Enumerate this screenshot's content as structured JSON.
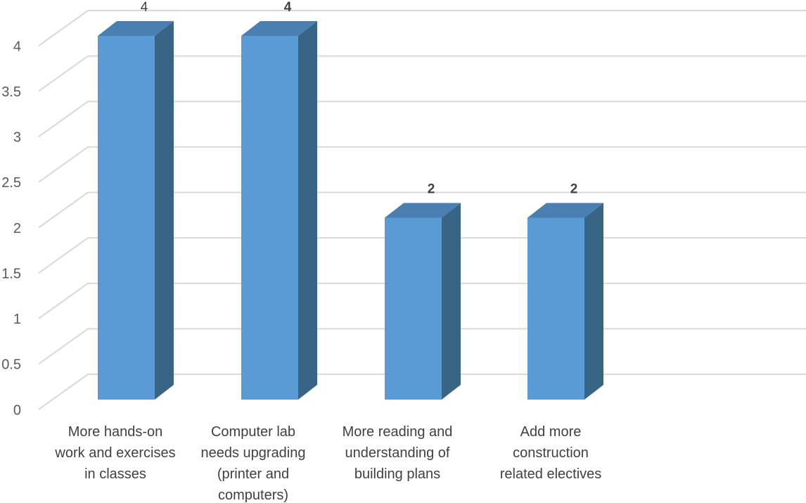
{
  "chart_data": {
    "type": "bar",
    "title": "",
    "xlabel": "",
    "ylabel": "",
    "categories": [
      [
        "More hands-on",
        "work and exercises",
        "in classes"
      ],
      [
        "Computer lab",
        "needs upgrading",
        "(printer and",
        "computers)"
      ],
      [
        "More reading and",
        "understanding of",
        "building plans"
      ],
      [
        "Add more",
        "construction",
        "related electives"
      ]
    ],
    "values": [
      4,
      4,
      2,
      2
    ],
    "data_labels": [
      "4",
      "4",
      "2",
      "2"
    ],
    "data_label_bold": [
      false,
      true,
      true,
      true
    ],
    "ylim": [
      0,
      4
    ],
    "y_ticks": [
      "0",
      "0.5",
      "1",
      "1.5",
      "2",
      "2.5",
      "3",
      "3.5",
      "4"
    ],
    "grid": true,
    "legend": "none",
    "style": "3d-column",
    "colors": {
      "front": "#5b9bd5",
      "side": "#386486",
      "top": "#4a7fb1",
      "grid": "#d9d9d9"
    }
  }
}
